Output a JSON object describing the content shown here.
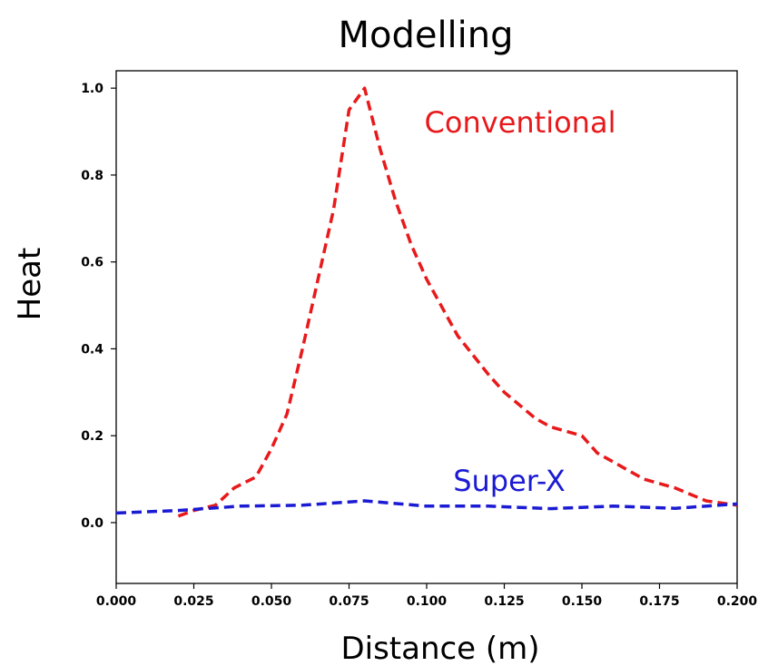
{
  "chart_data": {
    "type": "line",
    "title": "Modelling",
    "xlabel": "Distance (m)",
    "ylabel": "Heat",
    "xlim": [
      0.0,
      0.2
    ],
    "ylim": [
      -0.14,
      1.04
    ],
    "xticks": [
      "0.000",
      "0.025",
      "0.050",
      "0.075",
      "0.100",
      "0.125",
      "0.150",
      "0.175",
      "0.200"
    ],
    "yticks": [
      "0.0",
      "0.2",
      "0.4",
      "0.6",
      "0.8",
      "1.0"
    ],
    "grid": false,
    "series": [
      {
        "name": "Conventional",
        "color": "#e8191b",
        "line_style": "dashed",
        "x": [
          0.02,
          0.025,
          0.032,
          0.038,
          0.045,
          0.05,
          0.055,
          0.06,
          0.065,
          0.07,
          0.075,
          0.08,
          0.085,
          0.09,
          0.095,
          0.1,
          0.11,
          0.12,
          0.125,
          0.135,
          0.14,
          0.15,
          0.155,
          0.16,
          0.17,
          0.18,
          0.19,
          0.2
        ],
        "y": [
          0.015,
          0.028,
          0.04,
          0.08,
          0.105,
          0.17,
          0.25,
          0.4,
          0.56,
          0.72,
          0.95,
          1.0,
          0.86,
          0.74,
          0.64,
          0.56,
          0.43,
          0.34,
          0.3,
          0.24,
          0.22,
          0.2,
          0.16,
          0.14,
          0.1,
          0.08,
          0.05,
          0.04
        ]
      },
      {
        "name": "Super-X",
        "color": "#1b1bd4",
        "line_style": "dashed",
        "x": [
          0.0,
          0.02,
          0.04,
          0.06,
          0.08,
          0.1,
          0.12,
          0.14,
          0.16,
          0.18,
          0.2
        ],
        "y": [
          0.022,
          0.028,
          0.038,
          0.04,
          0.05,
          0.038,
          0.038,
          0.032,
          0.038,
          0.033,
          0.043
        ]
      }
    ]
  }
}
